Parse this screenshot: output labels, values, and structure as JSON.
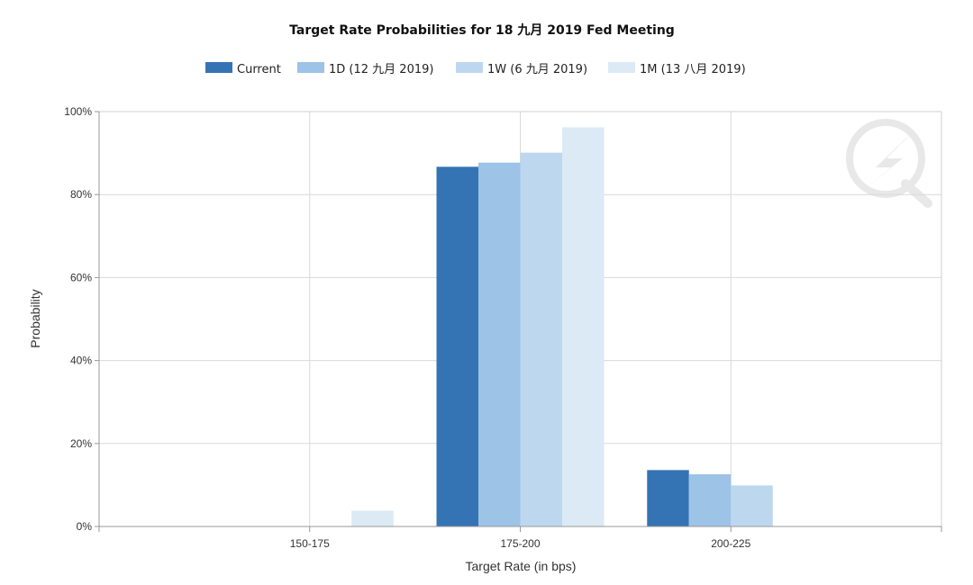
{
  "chart_data": {
    "type": "bar",
    "title": "Target Rate Probabilities for 18 九月 2019 Fed Meeting",
    "xlabel": "Target Rate (in bps)",
    "ylabel": "Probability",
    "categories": [
      "150-175",
      "175-200",
      "200-225"
    ],
    "ylim": [
      0,
      100
    ],
    "yticks": [
      "0%",
      "20%",
      "40%",
      "60%",
      "80%",
      "100%"
    ],
    "grid": true,
    "legend_position": "top",
    "series": [
      {
        "name": "Current",
        "color": "#3574b4",
        "values": [
          0,
          86.7,
          13.6
        ]
      },
      {
        "name": "1D (12 九月 2019)",
        "color": "#9dc3e6",
        "values": [
          0,
          87.7,
          12.6
        ]
      },
      {
        "name": "1W (6 九月 2019)",
        "color": "#bdd7ee",
        "values": [
          0,
          90.1,
          9.9
        ]
      },
      {
        "name": "1M (13 八月 2019)",
        "color": "#dceaf6",
        "values": [
          3.8,
          96.2,
          0
        ]
      }
    ]
  },
  "watermark_icon": "quote-lightning-logo-icon"
}
